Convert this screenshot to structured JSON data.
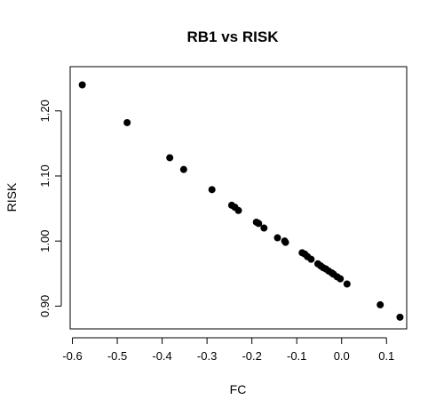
{
  "chart_data": {
    "type": "scatter",
    "title": "RB1 vs RISK",
    "xlabel": "FC",
    "ylabel": "RISK",
    "xlim": [
      -0.605,
      0.145
    ],
    "ylim": [
      0.865,
      1.268
    ],
    "x_ticks": [
      {
        "value": -0.6,
        "label": "-0.6"
      },
      {
        "value": -0.5,
        "label": "-0.5"
      },
      {
        "value": -0.4,
        "label": "-0.4"
      },
      {
        "value": -0.3,
        "label": "-0.3"
      },
      {
        "value": -0.2,
        "label": "-0.2"
      },
      {
        "value": -0.1,
        "label": "-0.1"
      },
      {
        "value": 0.0,
        "label": "0.0"
      },
      {
        "value": 0.1,
        "label": "0.1"
      }
    ],
    "y_ticks": [
      {
        "value": 0.9,
        "label": "0.90"
      },
      {
        "value": 1.0,
        "label": "1.00"
      },
      {
        "value": 1.1,
        "label": "1.10"
      },
      {
        "value": 1.2,
        "label": "1.20"
      }
    ],
    "grid": false,
    "legend": "none",
    "point_color": "#000000",
    "points": [
      {
        "x": -0.578,
        "y": 1.24
      },
      {
        "x": -0.478,
        "y": 1.182
      },
      {
        "x": -0.383,
        "y": 1.128
      },
      {
        "x": -0.352,
        "y": 1.11
      },
      {
        "x": -0.289,
        "y": 1.079
      },
      {
        "x": -0.245,
        "y": 1.055
      },
      {
        "x": -0.238,
        "y": 1.052
      },
      {
        "x": -0.23,
        "y": 1.047
      },
      {
        "x": -0.19,
        "y": 1.029
      },
      {
        "x": -0.185,
        "y": 1.027
      },
      {
        "x": -0.173,
        "y": 1.02
      },
      {
        "x": -0.143,
        "y": 1.005
      },
      {
        "x": -0.127,
        "y": 1.0
      },
      {
        "x": -0.125,
        "y": 0.998
      },
      {
        "x": -0.088,
        "y": 0.982
      },
      {
        "x": -0.082,
        "y": 0.98
      },
      {
        "x": -0.076,
        "y": 0.976
      },
      {
        "x": -0.068,
        "y": 0.972
      },
      {
        "x": -0.053,
        "y": 0.965
      },
      {
        "x": -0.047,
        "y": 0.962
      },
      {
        "x": -0.041,
        "y": 0.959
      },
      {
        "x": -0.035,
        "y": 0.957
      },
      {
        "x": -0.029,
        "y": 0.954
      },
      {
        "x": -0.022,
        "y": 0.951
      },
      {
        "x": -0.018,
        "y": 0.949
      },
      {
        "x": -0.01,
        "y": 0.945
      },
      {
        "x": -0.003,
        "y": 0.942
      },
      {
        "x": 0.012,
        "y": 0.934
      },
      {
        "x": 0.086,
        "y": 0.902
      },
      {
        "x": 0.13,
        "y": 0.883
      }
    ]
  }
}
